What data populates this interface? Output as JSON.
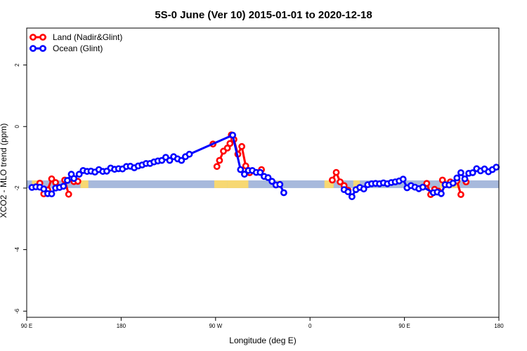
{
  "chart_data": {
    "type": "line",
    "title": "5S-0 June (Ver 10)   2015-01-01 to 2020-12-18",
    "xlabel": "Longitude (deg E)",
    "ylabel": "XCO2 - MLO trend (ppm)",
    "xlim": [
      90,
      450
    ],
    "ylim": [
      -6.2,
      3.2
    ],
    "x_ticks": [
      {
        "value": 90,
        "label": "90 E"
      },
      {
        "value": 162,
        "label": "180"
      },
      {
        "value": 234,
        "label": "90 W"
      },
      {
        "value": 306,
        "label": "0"
      },
      {
        "value": 378,
        "label": "90 E"
      },
      {
        "value": 450,
        "label": "180"
      }
    ],
    "y_ticks": [
      {
        "value": 2,
        "label": "2"
      },
      {
        "value": 0,
        "label": "0"
      },
      {
        "value": -2,
        "label": "-2"
      },
      {
        "value": -4,
        "label": "-4"
      },
      {
        "value": -6,
        "label": "-6"
      }
    ],
    "legend": {
      "position": "top-left"
    },
    "band": {
      "y_range": [
        -2.0,
        -1.75
      ],
      "color": "#a7b9dc",
      "land_color": "#f7d872"
    },
    "land_band_segments": [
      [
        94,
        96
      ],
      [
        96,
        100
      ],
      [
        131,
        137
      ],
      [
        233,
        243
      ],
      [
        243,
        259
      ],
      [
        281,
        283
      ],
      [
        317,
        324
      ],
      [
        339,
        344
      ],
      [
        405,
        420
      ]
    ],
    "series": [
      {
        "name": "Land (Nadir&Glint)",
        "color": "#ff0000",
        "segments": [
          [
            [
              100,
              -1.84
            ],
            [
              103,
              -2.19
            ],
            [
              106,
              -2.06
            ],
            [
              109,
              -1.7
            ],
            [
              112,
              -1.82
            ]
          ],
          [
            [
              119,
              -1.74
            ],
            [
              122,
              -2.2
            ]
          ],
          [
            [
              126,
              -1.79
            ],
            [
              129,
              -1.78
            ]
          ],
          [
            [
              235,
              -1.3
            ],
            [
              237,
              -1.1
            ],
            [
              240,
              -0.8
            ],
            [
              243,
              -0.7
            ],
            [
              245,
              -0.55
            ],
            [
              248,
              -0.42
            ],
            [
              251,
              -0.9
            ],
            [
              254,
              -0.65
            ],
            [
              257,
              -1.28
            ],
            [
              260,
              -1.5
            ]
          ],
          [
            [
              232,
              -0.57
            ]
          ],
          [
            [
              246,
              -0.27
            ]
          ],
          [
            [
              269,
              -1.4
            ]
          ],
          [
            [
              323,
              -1.74
            ],
            [
              326,
              -1.49
            ],
            [
              329,
              -1.8
            ],
            [
              332,
              -1.92
            ],
            [
              335,
              -2.07
            ]
          ],
          [
            [
              395,
              -1.85
            ],
            [
              398,
              -2.21
            ],
            [
              401,
              -2.04
            ],
            [
              404,
              -2.1
            ]
          ],
          [
            [
              407,
              -1.74
            ]
          ],
          [
            [
              413,
              -1.8
            ]
          ],
          [
            [
              418,
              -1.77
            ],
            [
              421,
              -2.21
            ]
          ],
          [
            [
              425,
              -1.8
            ]
          ]
        ]
      },
      {
        "name": "Ocean (Glint)",
        "color": "#0000ff",
        "segments": [
          [
            [
              94,
              -1.98
            ],
            [
              97,
              -1.96
            ],
            [
              100,
              -1.97
            ],
            [
              103,
              -2.03
            ],
            [
              106,
              -2.18
            ],
            [
              109,
              -2.19
            ],
            [
              112,
              -2.0
            ],
            [
              115,
              -1.98
            ],
            [
              118,
              -1.94
            ],
            [
              121,
              -1.75
            ],
            [
              124,
              -1.55
            ],
            [
              126,
              -1.69
            ],
            [
              130,
              -1.55
            ],
            [
              133,
              -1.43
            ],
            [
              136,
              -1.46
            ],
            [
              139,
              -1.45
            ],
            [
              142,
              -1.48
            ],
            [
              145,
              -1.4
            ],
            [
              148,
              -1.46
            ],
            [
              151,
              -1.45
            ],
            [
              154,
              -1.35
            ],
            [
              157,
              -1.39
            ],
            [
              160,
              -1.37
            ],
            [
              163,
              -1.38
            ],
            [
              166,
              -1.3
            ],
            [
              169,
              -1.29
            ],
            [
              172,
              -1.34
            ],
            [
              175,
              -1.28
            ],
            [
              178,
              -1.25
            ],
            [
              181,
              -1.2
            ],
            [
              184,
              -1.2
            ],
            [
              187,
              -1.15
            ],
            [
              190,
              -1.12
            ],
            [
              193,
              -1.1
            ],
            [
              196,
              -1.0
            ],
            [
              199,
              -1.1
            ],
            [
              202,
              -0.98
            ],
            [
              205,
              -1.05
            ],
            [
              208,
              -1.1
            ],
            [
              211,
              -0.98
            ],
            [
              214,
              -0.9
            ],
            [
              247,
              -0.28
            ],
            [
              253,
              -1.4
            ],
            [
              256,
              -1.55
            ],
            [
              259,
              -1.43
            ],
            [
              262,
              -1.43
            ],
            [
              265,
              -1.49
            ],
            [
              268,
              -1.49
            ],
            [
              271,
              -1.62
            ],
            [
              274,
              -1.66
            ],
            [
              277,
              -1.78
            ],
            [
              280,
              -1.9
            ],
            [
              283,
              -1.88
            ],
            [
              286,
              -2.15
            ]
          ],
          [
            [
              332,
              -2.05
            ],
            [
              335,
              -2.12
            ],
            [
              338,
              -2.28
            ],
            [
              341,
              -2.05
            ],
            [
              344,
              -1.98
            ],
            [
              347,
              -2.03
            ],
            [
              350,
              -1.89
            ],
            [
              353,
              -1.86
            ],
            [
              356,
              -1.85
            ],
            [
              359,
              -1.86
            ],
            [
              362,
              -1.83
            ],
            [
              365,
              -1.86
            ],
            [
              368,
              -1.82
            ],
            [
              371,
              -1.8
            ],
            [
              374,
              -1.77
            ],
            [
              377,
              -1.71
            ],
            [
              380,
              -1.99
            ],
            [
              383,
              -1.92
            ],
            [
              386,
              -1.97
            ],
            [
              389,
              -2.02
            ],
            [
              392,
              -1.97
            ],
            [
              400,
              -2.15
            ],
            [
              403,
              -2.13
            ],
            [
              406,
              -2.18
            ],
            [
              409,
              -1.89
            ],
            [
              412,
              -1.9
            ],
            [
              415,
              -1.84
            ],
            [
              418,
              -1.67
            ],
            [
              421,
              -1.5
            ],
            [
              424,
              -1.7
            ],
            [
              427,
              -1.52
            ],
            [
              430,
              -1.5
            ],
            [
              433,
              -1.37
            ],
            [
              436,
              -1.44
            ],
            [
              439,
              -1.38
            ],
            [
              442,
              -1.47
            ],
            [
              445,
              -1.4
            ],
            [
              448,
              -1.32
            ]
          ]
        ]
      }
    ]
  }
}
